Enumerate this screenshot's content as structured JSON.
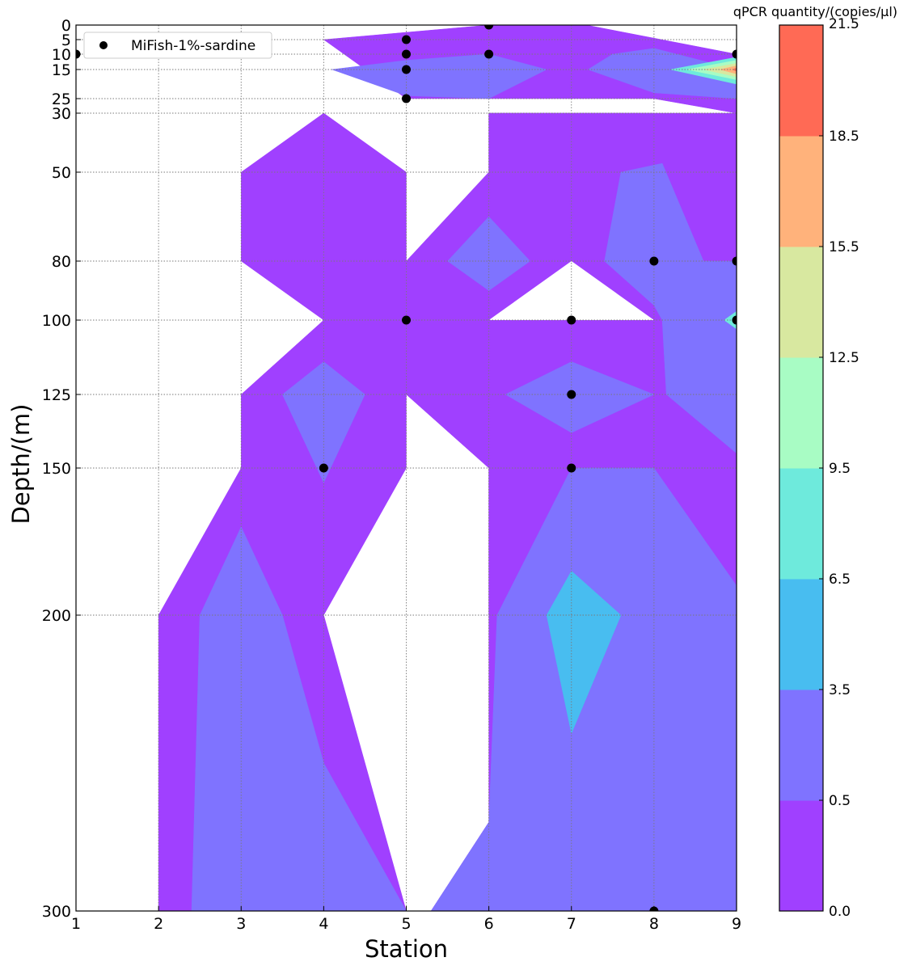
{
  "chart_data": {
    "type": "contour",
    "xlabel": "Station",
    "ylabel": "Depth/(m)",
    "xlim": [
      1,
      9
    ],
    "ylim": [
      300,
      0
    ],
    "y_axis_inverted": true,
    "x_ticks": [
      "1",
      "2",
      "3",
      "4",
      "5",
      "6",
      "7",
      "8",
      "9"
    ],
    "y_ticks": [
      "0",
      "5",
      "10",
      "15",
      "25",
      "30",
      "50",
      "80",
      "100",
      "125",
      "150",
      "200",
      "300"
    ],
    "grid": "dotted",
    "legend": {
      "position": "top-left",
      "entries": [
        "MiFish-1%-sardine"
      ]
    },
    "colorbar": {
      "label": "qPCR quantity/(copies/μl)",
      "levels": [
        0.0,
        0.5,
        3.5,
        6.5,
        9.5,
        12.5,
        15.5,
        18.5,
        21.5
      ],
      "level_labels": [
        "0.0",
        "0.5",
        "3.5",
        "6.5",
        "9.5",
        "12.5",
        "15.5",
        "18.5",
        "21.5"
      ],
      "colors": [
        "#a040ff",
        "#7f73ff",
        "#48bdf0",
        "#6eeadc",
        "#a8fcc4",
        "#d8e8a0",
        "#ffb27b",
        "#ff6a55"
      ]
    },
    "sample_points": {
      "name": "MiFish-1%-sardine",
      "x": [
        1,
        5,
        5,
        5,
        5,
        6,
        6,
        9,
        8,
        9,
        5,
        7,
        9,
        7,
        4,
        7,
        8
      ],
      "y": [
        10,
        5,
        10,
        15,
        25,
        0,
        10,
        10,
        80,
        80,
        100,
        100,
        100,
        125,
        150,
        150,
        300
      ]
    },
    "regions": [
      {
        "level": 0,
        "points": [
          [
            2,
            300
          ],
          [
            2,
            200
          ],
          [
            3,
            150
          ],
          [
            3,
            125
          ],
          [
            4,
            100
          ],
          [
            3,
            80
          ],
          [
            3,
            50
          ],
          [
            4,
            30
          ],
          [
            5,
            50
          ],
          [
            5,
            80
          ],
          [
            6,
            50
          ],
          [
            6,
            30
          ],
          [
            8,
            30
          ],
          [
            9,
            50
          ],
          [
            9,
            190
          ],
          [
            6,
            200
          ],
          [
            6,
            150
          ],
          [
            5,
            125
          ],
          [
            5,
            150
          ],
          [
            4,
            200
          ],
          [
            5,
            300
          ]
        ]
      },
      {
        "level": 0,
        "points": [
          [
            6,
            30
          ],
          [
            9,
            30
          ],
          [
            9,
            300
          ],
          [
            5.3,
            300
          ],
          [
            6,
            270
          ]
        ]
      },
      {
        "level": 0,
        "points": [
          [
            4,
            5
          ],
          [
            6,
            0
          ],
          [
            7,
            -1
          ],
          [
            9,
            10
          ],
          [
            9,
            30
          ],
          [
            8,
            25
          ],
          [
            5,
            25
          ]
        ]
      },
      {
        "level": 1,
        "points": [
          [
            2.4,
            300
          ],
          [
            2.5,
            200
          ],
          [
            3,
            170
          ],
          [
            3.5,
            200
          ],
          [
            4,
            250
          ],
          [
            5,
            300
          ]
        ]
      },
      {
        "level": 1,
        "points": [
          [
            5.3,
            300
          ],
          [
            6,
            270
          ],
          [
            6.1,
            200
          ],
          [
            7,
            150
          ],
          [
            8,
            150
          ],
          [
            9,
            190
          ],
          [
            9,
            300
          ]
        ]
      },
      {
        "level": 1,
        "points": [
          [
            7.4,
            80
          ],
          [
            7.6,
            50
          ],
          [
            8.1,
            47
          ],
          [
            8.6,
            80
          ],
          [
            9,
            80
          ],
          [
            9,
            145
          ],
          [
            8.15,
            125
          ],
          [
            8.1,
            100
          ],
          [
            8,
            95
          ]
        ]
      },
      {
        "level": 1,
        "points": [
          [
            6.2,
            125
          ],
          [
            7,
            114
          ],
          [
            8,
            125
          ],
          [
            7,
            138
          ]
        ]
      },
      {
        "level": 1,
        "points": [
          [
            3.5,
            125
          ],
          [
            4,
            114
          ],
          [
            4.5,
            125
          ],
          [
            4,
            155
          ]
        ]
      },
      {
        "level": 1,
        "points": [
          [
            5.5,
            80
          ],
          [
            6,
            65
          ],
          [
            6.5,
            80
          ],
          [
            6,
            90
          ]
        ]
      },
      {
        "level": 1,
        "points": [
          [
            4.1,
            15
          ],
          [
            5,
            12
          ],
          [
            6,
            10
          ],
          [
            6.7,
            15
          ],
          [
            6,
            25
          ],
          [
            5,
            24
          ]
        ]
      },
      {
        "level": 1,
        "points": [
          [
            7.2,
            15
          ],
          [
            7.5,
            10
          ],
          [
            8,
            8
          ],
          [
            9,
            15
          ],
          [
            9,
            25
          ],
          [
            8,
            23
          ]
        ]
      },
      {
        "level": 2,
        "points": [
          [
            6.7,
            200
          ],
          [
            7,
            185
          ],
          [
            7.6,
            200
          ],
          [
            7,
            240
          ]
        ]
      },
      {
        "level": 3,
        "points": [
          [
            8.2,
            15
          ],
          [
            9,
            11
          ],
          [
            9,
            20
          ]
        ]
      },
      {
        "level": 4,
        "points": [
          [
            8.4,
            15
          ],
          [
            9,
            12
          ],
          [
            9,
            18.5
          ]
        ]
      },
      {
        "level": 5,
        "points": [
          [
            8.6,
            15
          ],
          [
            9,
            13
          ],
          [
            9,
            17.5
          ]
        ]
      },
      {
        "level": 6,
        "points": [
          [
            8.8,
            15
          ],
          [
            9,
            13.8
          ],
          [
            9,
            16.5
          ]
        ]
      },
      {
        "level": 7,
        "points": [
          [
            8.95,
            15
          ],
          [
            9,
            14.5
          ],
          [
            9,
            15.6
          ]
        ]
      },
      {
        "level": 3,
        "points": [
          [
            8.85,
            100
          ],
          [
            9,
            97
          ],
          [
            9,
            103
          ]
        ]
      }
    ],
    "white_areas": [
      {
        "points": [
          [
            6,
            100
          ],
          [
            7,
            80
          ],
          [
            8,
            100
          ]
        ]
      }
    ]
  }
}
